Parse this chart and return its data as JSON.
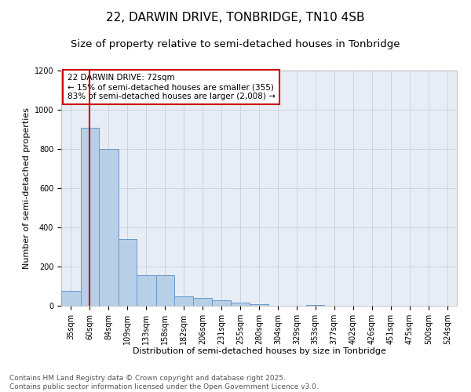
{
  "title_line1": "22, DARWIN DRIVE, TONBRIDGE, TN10 4SB",
  "title_line2": "Size of property relative to semi-detached houses in Tonbridge",
  "xlabel": "Distribution of semi-detached houses by size in Tonbridge",
  "ylabel": "Number of semi-detached properties",
  "categories": [
    "35sqm",
    "60sqm",
    "84sqm",
    "109sqm",
    "133sqm",
    "158sqm",
    "182sqm",
    "206sqm",
    "231sqm",
    "255sqm",
    "280sqm",
    "304sqm",
    "329sqm",
    "353sqm",
    "377sqm",
    "402sqm",
    "426sqm",
    "451sqm",
    "475sqm",
    "500sqm",
    "524sqm"
  ],
  "bin_edges": [
    35,
    60,
    84,
    109,
    133,
    158,
    182,
    206,
    231,
    255,
    280,
    304,
    329,
    353,
    377,
    402,
    426,
    451,
    475,
    500,
    524,
    549
  ],
  "values": [
    75,
    910,
    800,
    340,
    155,
    155,
    50,
    40,
    30,
    18,
    10,
    0,
    0,
    5,
    0,
    0,
    0,
    0,
    0,
    0,
    0
  ],
  "bar_color": "#b8cfe8",
  "bar_edge_color": "#6699cc",
  "property_size": 72,
  "property_line_color": "#cc0000",
  "annotation_text": "22 DARWIN DRIVE: 72sqm\n← 15% of semi-detached houses are smaller (355)\n83% of semi-detached houses are larger (2,008) →",
  "ylim": [
    0,
    1200
  ],
  "yticks": [
    0,
    200,
    400,
    600,
    800,
    1000,
    1200
  ],
  "footer_text": "Contains HM Land Registry data © Crown copyright and database right 2025.\nContains public sector information licensed under the Open Government Licence v3.0.",
  "background_color": "#ffffff",
  "plot_bg_color": "#e8edf5",
  "grid_color": "#c8d0dc",
  "title_fontsize": 11,
  "subtitle_fontsize": 9.5,
  "label_fontsize": 8,
  "tick_fontsize": 7,
  "footer_fontsize": 6.5,
  "annotation_fontsize": 7.5
}
